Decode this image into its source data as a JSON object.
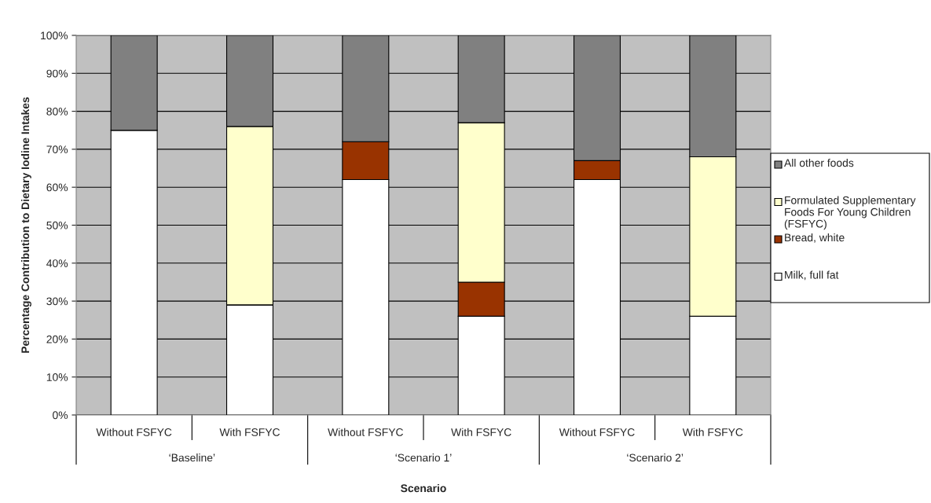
{
  "chart_data": {
    "type": "bar",
    "stacked": true,
    "xlabel": "Scenario",
    "ylabel": "Percentage Contribution to Dietary Iodine Intakes",
    "categories": [
      "Without FSFYC",
      "With FSFYC",
      "Without FSFYC",
      "With FSFYC",
      "Without FSFYC",
      "With FSFYC"
    ],
    "annotations": [
      "‘Baseline’",
      "‘Scenario 1’",
      "‘Scenario 2’"
    ],
    "series": [
      {
        "name": "Milk, full fat",
        "color": "#ffffff",
        "values": [
          75,
          29,
          62,
          26,
          62,
          26
        ]
      },
      {
        "name": "Bread, white",
        "color": "#993300",
        "values": [
          0,
          0,
          10,
          9,
          5,
          0
        ]
      },
      {
        "name": "Formulated Supplementary Foods For Young Children (FSFYC)",
        "color": "#ffffcc",
        "values": [
          0,
          47,
          0,
          42,
          0,
          42
        ]
      },
      {
        "name": "All other foods",
        "color": "#808080",
        "values": [
          25,
          24,
          28,
          23,
          33,
          32
        ]
      }
    ],
    "ylim": [
      0,
      100
    ],
    "yticks": [
      {
        "value": 0,
        "label": "0%"
      },
      {
        "value": 10,
        "label": "10%"
      },
      {
        "value": 20,
        "label": "20%"
      },
      {
        "value": 30,
        "label": "30%"
      },
      {
        "value": 40,
        "label": "40%"
      },
      {
        "value": 50,
        "label": "50%"
      },
      {
        "value": 60,
        "label": "60%"
      },
      {
        "value": 70,
        "label": "70%"
      },
      {
        "value": 80,
        "label": "80%"
      },
      {
        "value": 90,
        "label": "90%"
      },
      {
        "value": 100,
        "label": "100%"
      }
    ],
    "grid": "y",
    "legend": "right"
  }
}
